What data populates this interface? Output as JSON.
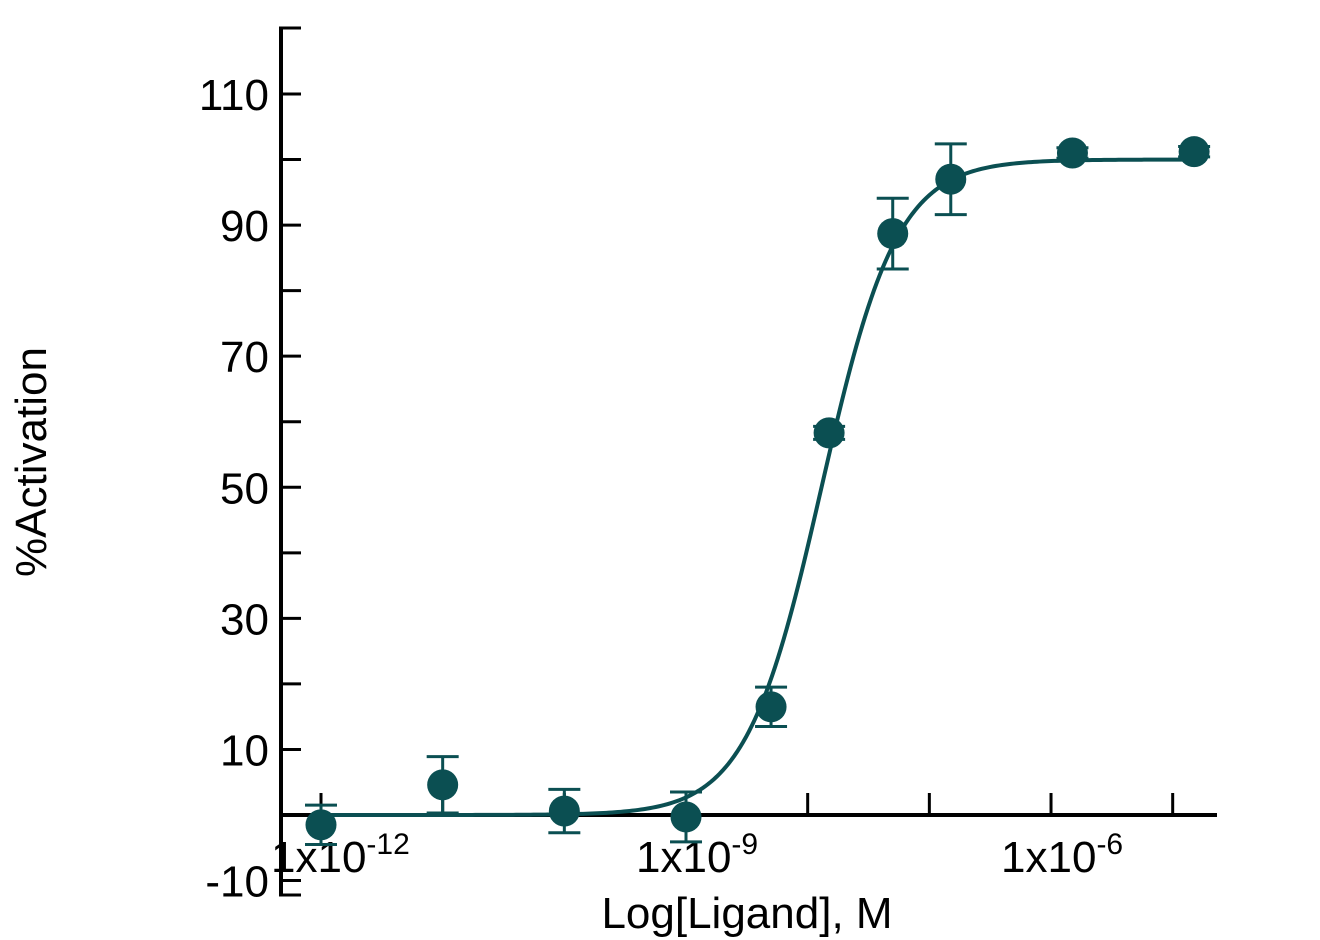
{
  "chart_data": {
    "type": "scatter",
    "xlabel": "Log[Ligand],  M",
    "ylabel": "%Activation",
    "x_scale": "log",
    "xlim": [
      5e-13,
      3e-05
    ],
    "ylim": [
      -10,
      120
    ],
    "y_ticks": [
      -10,
      10,
      30,
      50,
      70,
      90,
      110
    ],
    "y_minor_ticks": [
      0,
      20,
      40,
      60,
      80,
      100
    ],
    "x_ticks": [
      {
        "value": 1e-12,
        "base": "1x10",
        "exp": "-12"
      },
      {
        "value": 1e-09,
        "base": "1x10",
        "exp": "-9"
      },
      {
        "value": 1e-06,
        "base": "1x10",
        "exp": "-6"
      }
    ],
    "x_minor_ticks": [
      1e-11,
      1e-10,
      1e-08,
      1e-07,
      1e-05
    ],
    "grid": false,
    "color": "#0b4f52",
    "series": [
      {
        "x": [
          1e-12,
          1e-11,
          1e-10,
          1e-09,
          5e-09,
          1.5e-08,
          5e-08,
          1.5e-07,
          1.5e-06,
          1.5e-05
        ],
        "y": [
          -1.5,
          4.6,
          0.6,
          -0.3,
          16.5,
          58.3,
          88.7,
          97.0,
          101.0,
          101.2
        ],
        "error": [
          3.0,
          4.3,
          3.3,
          3.8,
          3.0,
          1.0,
          5.4,
          5.4,
          0.8,
          0.8
        ]
      }
    ],
    "fit": {
      "model": "four-parameter logistic",
      "bottom": 0,
      "top": 100,
      "ec50": 1.3e-08,
      "hill": 1.4
    }
  }
}
